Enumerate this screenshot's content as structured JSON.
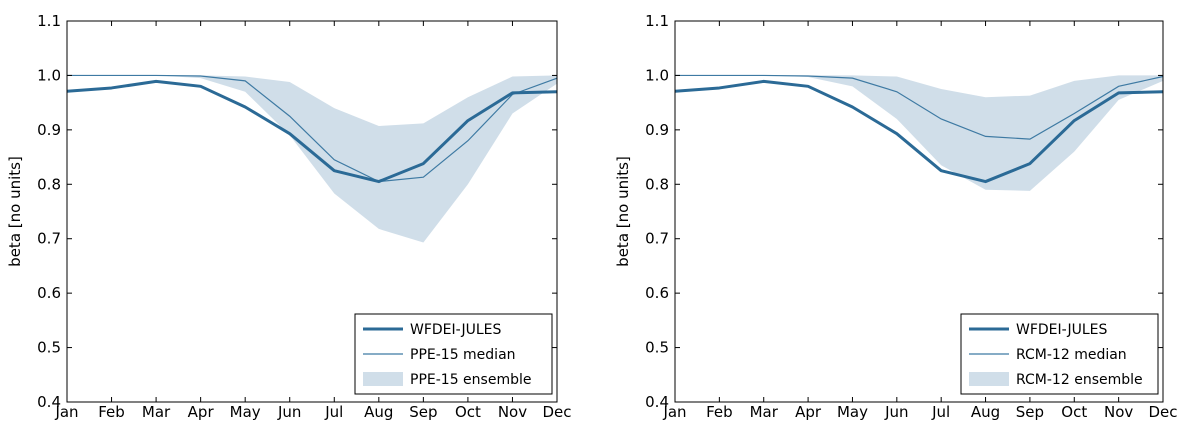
{
  "chart_data": [
    {
      "type": "line",
      "title": "",
      "xlabel": "",
      "ylabel": "beta [no units]",
      "categories": [
        "Jan",
        "Feb",
        "Mar",
        "Apr",
        "May",
        "Jun",
        "Jul",
        "Aug",
        "Sep",
        "Oct",
        "Nov",
        "Dec"
      ],
      "ylim": [
        0.4,
        1.1
      ],
      "yticks": [
        "0.4",
        "0.5",
        "0.6",
        "0.7",
        "0.8",
        "0.9",
        "1.0",
        "1.1"
      ],
      "grid": false,
      "legend_position": "lower-right",
      "series": [
        {
          "name": "WFDEI-JULES",
          "style": "thick-line",
          "color": "#2b6a96",
          "values": [
            0.971,
            0.977,
            0.989,
            0.98,
            0.942,
            0.893,
            0.825,
            0.805,
            0.838,
            0.917,
            0.968,
            0.97
          ]
        },
        {
          "name": "PPE-15 median",
          "style": "thin-line",
          "color": "#3e7aa3",
          "values": [
            1.0,
            1.0,
            1.0,
            0.999,
            0.99,
            0.925,
            0.845,
            0.805,
            0.813,
            0.88,
            0.965,
            0.995
          ]
        },
        {
          "name": "PPE-15 ensemble",
          "style": "band",
          "color": "#b7ccdd",
          "lower": [
            1.0,
            1.0,
            1.0,
            0.995,
            0.97,
            0.89,
            0.783,
            0.718,
            0.693,
            0.8,
            0.93,
            0.985
          ],
          "upper": [
            1.0,
            1.0,
            1.0,
            1.0,
            0.998,
            0.988,
            0.94,
            0.907,
            0.912,
            0.96,
            0.998,
            1.0
          ]
        }
      ]
    },
    {
      "type": "line",
      "title": "",
      "xlabel": "",
      "ylabel": "beta [no units]",
      "categories": [
        "Jan",
        "Feb",
        "Mar",
        "Apr",
        "May",
        "Jun",
        "Jul",
        "Aug",
        "Sep",
        "Oct",
        "Nov",
        "Dec"
      ],
      "ylim": [
        0.4,
        1.1
      ],
      "yticks": [
        "0.4",
        "0.5",
        "0.6",
        "0.7",
        "0.8",
        "0.9",
        "1.0",
        "1.1"
      ],
      "grid": false,
      "legend_position": "lower-right",
      "series": [
        {
          "name": "WFDEI-JULES",
          "style": "thick-line",
          "color": "#2b6a96",
          "values": [
            0.971,
            0.977,
            0.989,
            0.98,
            0.942,
            0.893,
            0.825,
            0.805,
            0.838,
            0.917,
            0.968,
            0.97
          ]
        },
        {
          "name": "RCM-12 median",
          "style": "thin-line",
          "color": "#3e7aa3",
          "values": [
            1.0,
            1.0,
            1.0,
            0.999,
            0.995,
            0.97,
            0.92,
            0.888,
            0.883,
            0.93,
            0.98,
            0.998
          ]
        },
        {
          "name": "RCM-12 ensemble",
          "style": "band",
          "color": "#b7ccdd",
          "lower": [
            1.0,
            1.0,
            1.0,
            0.997,
            0.98,
            0.92,
            0.835,
            0.79,
            0.788,
            0.86,
            0.955,
            0.99
          ],
          "upper": [
            1.0,
            1.0,
            1.0,
            1.0,
            1.0,
            0.998,
            0.975,
            0.96,
            0.963,
            0.99,
            1.0,
            1.0
          ]
        }
      ]
    }
  ]
}
